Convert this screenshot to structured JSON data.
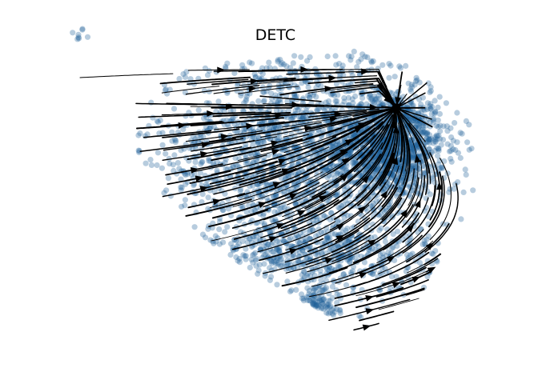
{
  "chart_data": {
    "type": "scatter",
    "title": "DETC",
    "xlabel": "",
    "ylabel": "",
    "axes_visible": false,
    "grid": false,
    "legend": "none",
    "point_color": "#1f5f99",
    "stream_color": "#000000",
    "overlay": "velocity-streamlines",
    "point_groups": [
      {
        "name": "",
        "center": [
          -9.6,
          6.4
        ],
        "spread": [
          0.15,
          0.15
        ],
        "count": 8
      },
      {
        "name": "",
        "center": [
          3.5,
          1.8
        ],
        "spread": [
          1.1,
          1.1
        ],
        "count": 1200
      },
      {
        "name": "",
        "center": [
          -0.5,
          1.5
        ],
        "spread": [
          3.0,
          2.2
        ],
        "count": 1800
      },
      {
        "name": "",
        "center": [
          0.5,
          -2.8
        ],
        "spread": [
          2.5,
          0.8
        ],
        "count": 500
      },
      {
        "name": "",
        "center": [
          0.3,
          -5.0
        ],
        "spread": [
          0.5,
          0.4
        ],
        "count": 80
      }
    ]
  }
}
